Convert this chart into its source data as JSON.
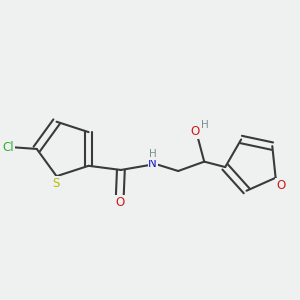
{
  "bg_color": "#eff1f1",
  "bond_color": "#3a3a3a",
  "bond_width": 1.5,
  "atom_colors": {
    "C": "#3a3a3a",
    "H": "#7a9090",
    "N": "#1a1acc",
    "O": "#cc1a1a",
    "S": "#bbbb00",
    "Cl": "#33aa33"
  },
  "font_size": 8.5,
  "fig_size": [
    3.0,
    3.0
  ],
  "dpi": 100
}
